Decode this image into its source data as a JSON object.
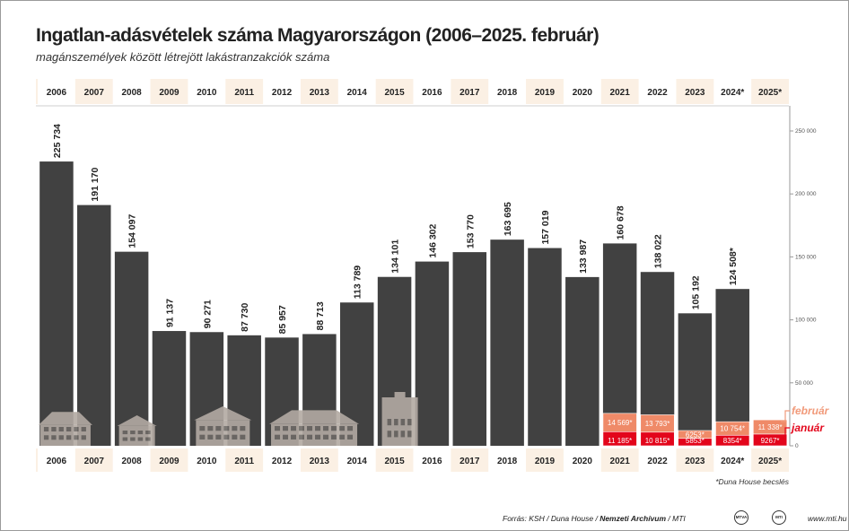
{
  "header": {
    "title": "Ingatlan-adásvételek száma Magyarországon (2006–2025. február)",
    "subtitle": "magánszemélyek között létrejött lakástranzakciók száma"
  },
  "chart_data": {
    "type": "bar",
    "categories": [
      "2006",
      "2007",
      "2008",
      "2009",
      "2010",
      "2011",
      "2012",
      "2013",
      "2014",
      "2015",
      "2016",
      "2017",
      "2018",
      "2019",
      "2020",
      "2021",
      "2022",
      "2023",
      "2024*",
      "2025*"
    ],
    "series": [
      {
        "name": "",
        "values": [
          225734,
          191170,
          154097,
          91137,
          90271,
          87730,
          85957,
          88713,
          113789,
          134101,
          146302,
          153770,
          163695,
          157019,
          133987,
          160678,
          138022,
          105192,
          124508,
          null
        ]
      },
      {
        "name": "január",
        "values": [
          null,
          null,
          null,
          null,
          null,
          null,
          null,
          null,
          null,
          null,
          null,
          null,
          null,
          null,
          null,
          11185,
          10815,
          5853,
          8354,
          9267
        ]
      },
      {
        "name": "február",
        "values": [
          null,
          null,
          null,
          null,
          null,
          null,
          null,
          null,
          null,
          null,
          null,
          null,
          null,
          null,
          null,
          14569,
          13793,
          6253,
          10754,
          11338
        ]
      }
    ],
    "value_labels": [
      "225 734",
      "191 170",
      "154 097",
      "91 137",
      "90 271",
      "87 730",
      "85 957",
      "88 713",
      "113 789",
      "134 101",
      "146 302",
      "153 770",
      "163 695",
      "157 019",
      "133 987",
      "160 678",
      "138 022",
      "105 192",
      "124 508*",
      ""
    ],
    "jan_labels": [
      "",
      "",
      "",
      "",
      "",
      "",
      "",
      "",
      "",
      "",
      "",
      "",
      "",
      "",
      "",
      "11 185*",
      "10 815*",
      "5853*",
      "8354*",
      "9267*"
    ],
    "feb_labels": [
      "",
      "",
      "",
      "",
      "",
      "",
      "",
      "",
      "",
      "",
      "",
      "",
      "",
      "",
      "",
      "14 569*",
      "13 793*",
      "6253*",
      "10 754*",
      "11 338*"
    ],
    "y_ticks": [
      "250 000",
      "200 000",
      "150 000",
      "100 000",
      "50 000",
      "0"
    ],
    "y_tick_values": [
      250000,
      200000,
      150000,
      100000,
      50000,
      0
    ],
    "ylim": [
      0,
      250000
    ],
    "legend": {
      "feb": "február",
      "jan": "január"
    },
    "note": "*Duna House becslés",
    "colors": {
      "bar": "#414141",
      "january": "#e3051b",
      "february": "#ef8a68",
      "feb_legend": "#f19a7a",
      "band_light": "#fbf0e4",
      "axis_text": "#555555",
      "house": "#b3aaa3"
    }
  },
  "footer": {
    "source_prefix": "Forrás: KSH / Duna House / ",
    "source_bold": "Nemzeti Archívum",
    "source_suffix": " / MTI",
    "logo1": "MTVA",
    "logo2": "MTI",
    "website": "www.mti.hu"
  }
}
